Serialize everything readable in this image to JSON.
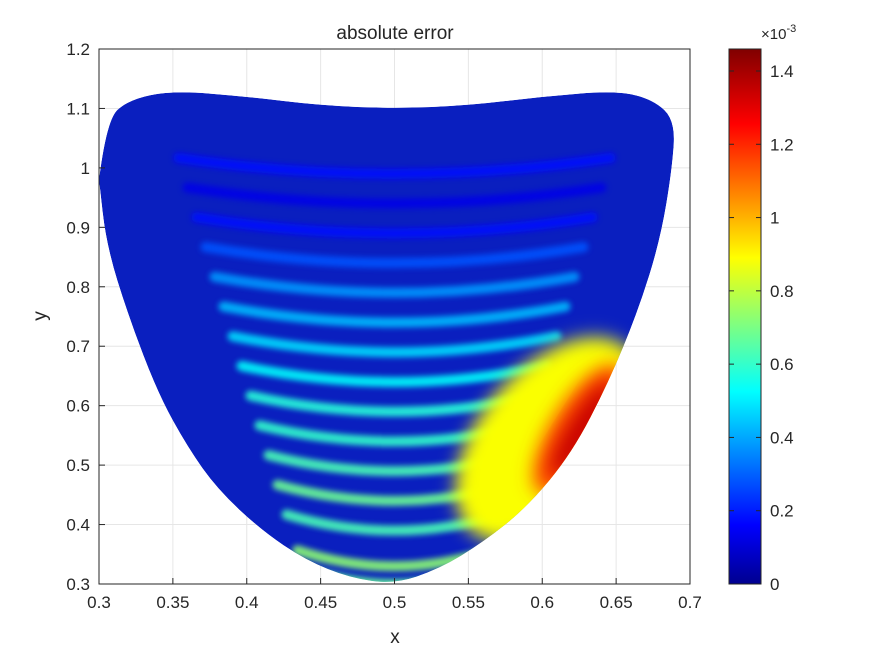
{
  "chart_data": {
    "type": "heatmap",
    "title": "absolute error",
    "xlabel": "x",
    "ylabel": "y",
    "xlim": [
      0.3,
      0.7
    ],
    "ylim": [
      0.3,
      1.2
    ],
    "x_ticks": [
      "0.3",
      "0.35",
      "0.4",
      "0.45",
      "0.5",
      "0.55",
      "0.6",
      "0.65",
      "0.7"
    ],
    "y_ticks": [
      "0.3",
      "0.4",
      "0.5",
      "0.6",
      "0.7",
      "0.8",
      "0.9",
      "1",
      "1.1",
      "1.2"
    ],
    "grid": true,
    "colormap": "jet",
    "colorbar": {
      "range": [
        0,
        0.00146
      ],
      "ticks": [
        "0",
        "0.2",
        "0.4",
        "0.6",
        "0.8",
        "1",
        "1.2",
        "1.4"
      ],
      "exponent_base": "×10",
      "exponent_power": "-3"
    },
    "domain_outline": [
      [
        0.3,
        0.98
      ],
      [
        0.305,
        1.08
      ],
      [
        0.32,
        1.115
      ],
      [
        0.35,
        1.13
      ],
      [
        0.4,
        1.12
      ],
      [
        0.45,
        1.105
      ],
      [
        0.5,
        1.1
      ],
      [
        0.55,
        1.105
      ],
      [
        0.6,
        1.12
      ],
      [
        0.65,
        1.13
      ],
      [
        0.675,
        1.115
      ],
      [
        0.69,
        1.08
      ],
      [
        0.688,
        1.0
      ],
      [
        0.68,
        0.88
      ],
      [
        0.665,
        0.76
      ],
      [
        0.645,
        0.64
      ],
      [
        0.62,
        0.52
      ],
      [
        0.59,
        0.43
      ],
      [
        0.56,
        0.37
      ],
      [
        0.53,
        0.325
      ],
      [
        0.5,
        0.3
      ],
      [
        0.47,
        0.31
      ],
      [
        0.44,
        0.34
      ],
      [
        0.41,
        0.39
      ],
      [
        0.38,
        0.46
      ],
      [
        0.36,
        0.53
      ],
      [
        0.34,
        0.62
      ],
      [
        0.32,
        0.75
      ],
      [
        0.305,
        0.87
      ],
      [
        0.3,
        0.98
      ]
    ],
    "error_bands": [
      {
        "y": 0.31,
        "value": 0.0007
      },
      {
        "y": 0.34,
        "value": 0.00075
      },
      {
        "y": 0.4,
        "value": 0.00065
      },
      {
        "y": 0.45,
        "value": 0.0007
      },
      {
        "y": 0.5,
        "value": 0.00065
      },
      {
        "y": 0.55,
        "value": 0.00062
      },
      {
        "y": 0.6,
        "value": 0.0006
      },
      {
        "y": 0.65,
        "value": 0.00055
      },
      {
        "y": 0.7,
        "value": 0.0005
      },
      {
        "y": 0.75,
        "value": 0.00045
      },
      {
        "y": 0.8,
        "value": 0.0004
      },
      {
        "y": 0.85,
        "value": 0.0003
      },
      {
        "y": 0.9,
        "value": 0.0002
      },
      {
        "y": 0.95,
        "value": 0.00015
      },
      {
        "y": 1.0,
        "value": 0.0002
      }
    ],
    "error_peak": {
      "x": 0.625,
      "y": 0.56,
      "value": 0.00146
    }
  }
}
